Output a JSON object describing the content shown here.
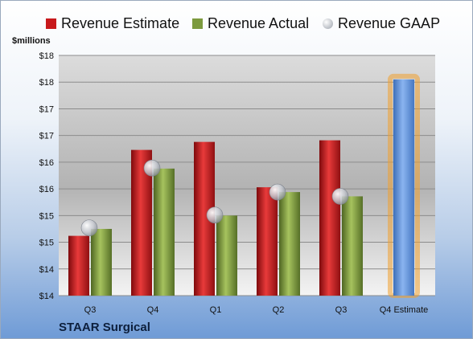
{
  "company_label": "STAAR Surgical",
  "colors": {
    "estimate": "#c8191c",
    "actual": "#7c9a3e",
    "gaap": "#b9bcc4",
    "future_estimate": "#6b9be0",
    "future_glow": "#f0a030"
  },
  "chart_data": {
    "type": "bar",
    "title": "",
    "xlabel": "",
    "ylabel": "$millions",
    "ylim": [
      14,
      18.5
    ],
    "y_ticks": [
      "$14",
      "$14",
      "$15",
      "$15",
      "$16",
      "$16",
      "$17",
      "$17",
      "$18",
      "$18"
    ],
    "grid": true,
    "legend_position": "top",
    "categories": [
      "Q3",
      "Q4",
      "Q1",
      "Q2",
      "Q3",
      "Q4 Estimate"
    ],
    "series": [
      {
        "name": "Revenue Estimate",
        "values": [
          15.12,
          16.73,
          16.88,
          16.03,
          16.91,
          null
        ]
      },
      {
        "name": "Revenue Actual",
        "values": [
          15.25,
          16.38,
          15.5,
          15.94,
          15.86,
          18.05
        ]
      },
      {
        "name": "Revenue GAAP",
        "values": [
          15.27,
          16.39,
          15.51,
          15.94,
          15.86,
          null
        ]
      }
    ],
    "highlight": {
      "category": "Q4 Estimate",
      "label": "estimate"
    }
  }
}
